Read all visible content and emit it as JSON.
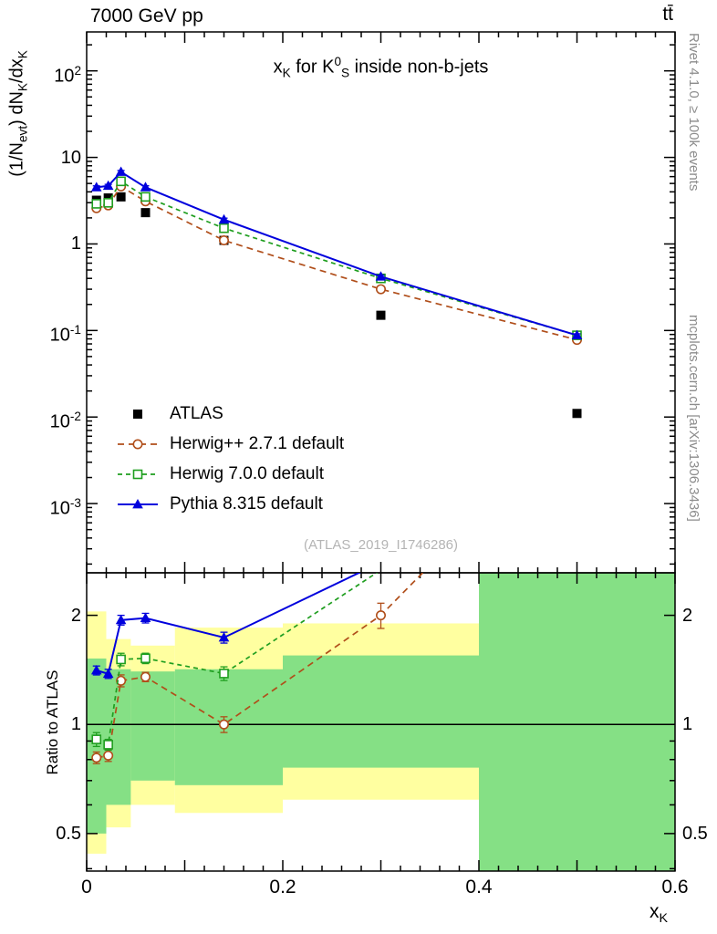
{
  "header": {
    "left": "7000 GeV pp",
    "right": "tt̄"
  },
  "side_notes": {
    "right_top": "Rivet 4.1.0, ≥ 100k events",
    "right_bottom": "mcplots.cern.ch [arXiv:1306.3436]"
  },
  "watermark": "(ATLAS_2019_I1746286)",
  "chart_data": {
    "type": "line",
    "title": "x_{K} for K^{0}_{S} inside non-b-jets",
    "xlabel": "x_{K}",
    "ylabel": "(1/N_{evt}) dN_{K}/dx_{K}",
    "ratio_ylabel": "Ratio to ATLAS",
    "xlim": [
      0,
      0.6
    ],
    "ylim_log": [
      -3.8,
      2.45
    ],
    "ratio_lim": [
      0.394,
      2.62
    ],
    "grid": "off",
    "legend_position": "inside-left-middle",
    "x": [
      0.01,
      0.022,
      0.035,
      0.06,
      0.14,
      0.3,
      0.5
    ],
    "series": [
      {
        "name": "ATLAS",
        "marker": "square-filled",
        "color": "#000000",
        "line": "none",
        "err_frac": 0.05,
        "values": [
          3.2,
          3.4,
          3.5,
          2.3,
          1.1,
          0.15,
          0.011
        ],
        "ratio_err": [
          0,
          0,
          0,
          0,
          0,
          0,
          0
        ]
      },
      {
        "name": "Herwig++ 2.7.1 default",
        "marker": "circle-open",
        "color": "#b04e1a",
        "line": "dash",
        "dash": "7,5",
        "err_frac": 0.04,
        "values": [
          2.59,
          2.79,
          4.62,
          3.11,
          1.1,
          0.3,
          0.078
        ],
        "ratio_err": [
          0.03,
          0.03,
          0.05,
          0.04,
          0.05,
          0.16,
          0.5
        ]
      },
      {
        "name": "Herwig 7.0.0 default",
        "marker": "square-open",
        "color": "#1f9e1f",
        "line": "dash",
        "dash": "5,4",
        "err_frac": 0.04,
        "values": [
          2.91,
          2.99,
          5.29,
          3.5,
          1.52,
          0.4,
          0.088
        ],
        "ratio_err": [
          0.04,
          0.03,
          0.06,
          0.05,
          0.06,
          0.25,
          0.5
        ]
      },
      {
        "name": "Pythia 8.315 default",
        "marker": "triangle-filled",
        "color": "#0000dd",
        "line": "solid",
        "err_frac": 0.04,
        "values": [
          4.51,
          4.69,
          6.79,
          4.52,
          1.91,
          0.42,
          0.088
        ],
        "ratio_err": [
          0.04,
          0.04,
          0.06,
          0.06,
          0.06,
          0.25,
          0.5
        ]
      }
    ],
    "y_ticks": [
      {
        "v": 100,
        "label": "10^{2}"
      },
      {
        "v": 10,
        "label": "10"
      },
      {
        "v": 1,
        "label": "1"
      },
      {
        "v": 0.1,
        "label": "10^{-1}"
      },
      {
        "v": 0.01,
        "label": "10^{-2}"
      },
      {
        "v": 0.001,
        "label": "10^{-3}"
      }
    ],
    "ratio_ticks": [
      {
        "v": 2,
        "label": "2"
      },
      {
        "v": 1,
        "label": "1"
      },
      {
        "v": 0.5,
        "label": "0.5"
      }
    ],
    "x_ticks": [
      {
        "v": 0,
        "label": "0"
      },
      {
        "v": 0.2,
        "label": "0.2"
      },
      {
        "v": 0.4,
        "label": "0.4"
      },
      {
        "v": 0.6,
        "label": "0.6"
      }
    ],
    "band_colors": {
      "outer": "#ffffa0",
      "inner": "#85e085"
    },
    "ratio_bands": [
      {
        "x0": 0,
        "x1": 0.02,
        "yellow": [
          0.44,
          2.05
        ],
        "green": [
          0.5,
          1.52
        ]
      },
      {
        "x0": 0.02,
        "x1": 0.045,
        "yellow": [
          0.52,
          1.72
        ],
        "green": [
          0.6,
          1.42
        ]
      },
      {
        "x0": 0.045,
        "x1": 0.09,
        "yellow": [
          0.6,
          1.65
        ],
        "green": [
          0.7,
          1.4
        ]
      },
      {
        "x0": 0.09,
        "x1": 0.2,
        "yellow": [
          0.57,
          1.85
        ],
        "green": [
          0.68,
          1.42
        ]
      },
      {
        "x0": 0.2,
        "x1": 0.4,
        "yellow": [
          0.62,
          1.9
        ],
        "green": [
          0.76,
          1.55
        ]
      },
      {
        "x0": 0.4,
        "x1": 0.6,
        "yellow": [
          0.394,
          2.62
        ],
        "green": [
          0.394,
          2.62
        ]
      }
    ]
  }
}
